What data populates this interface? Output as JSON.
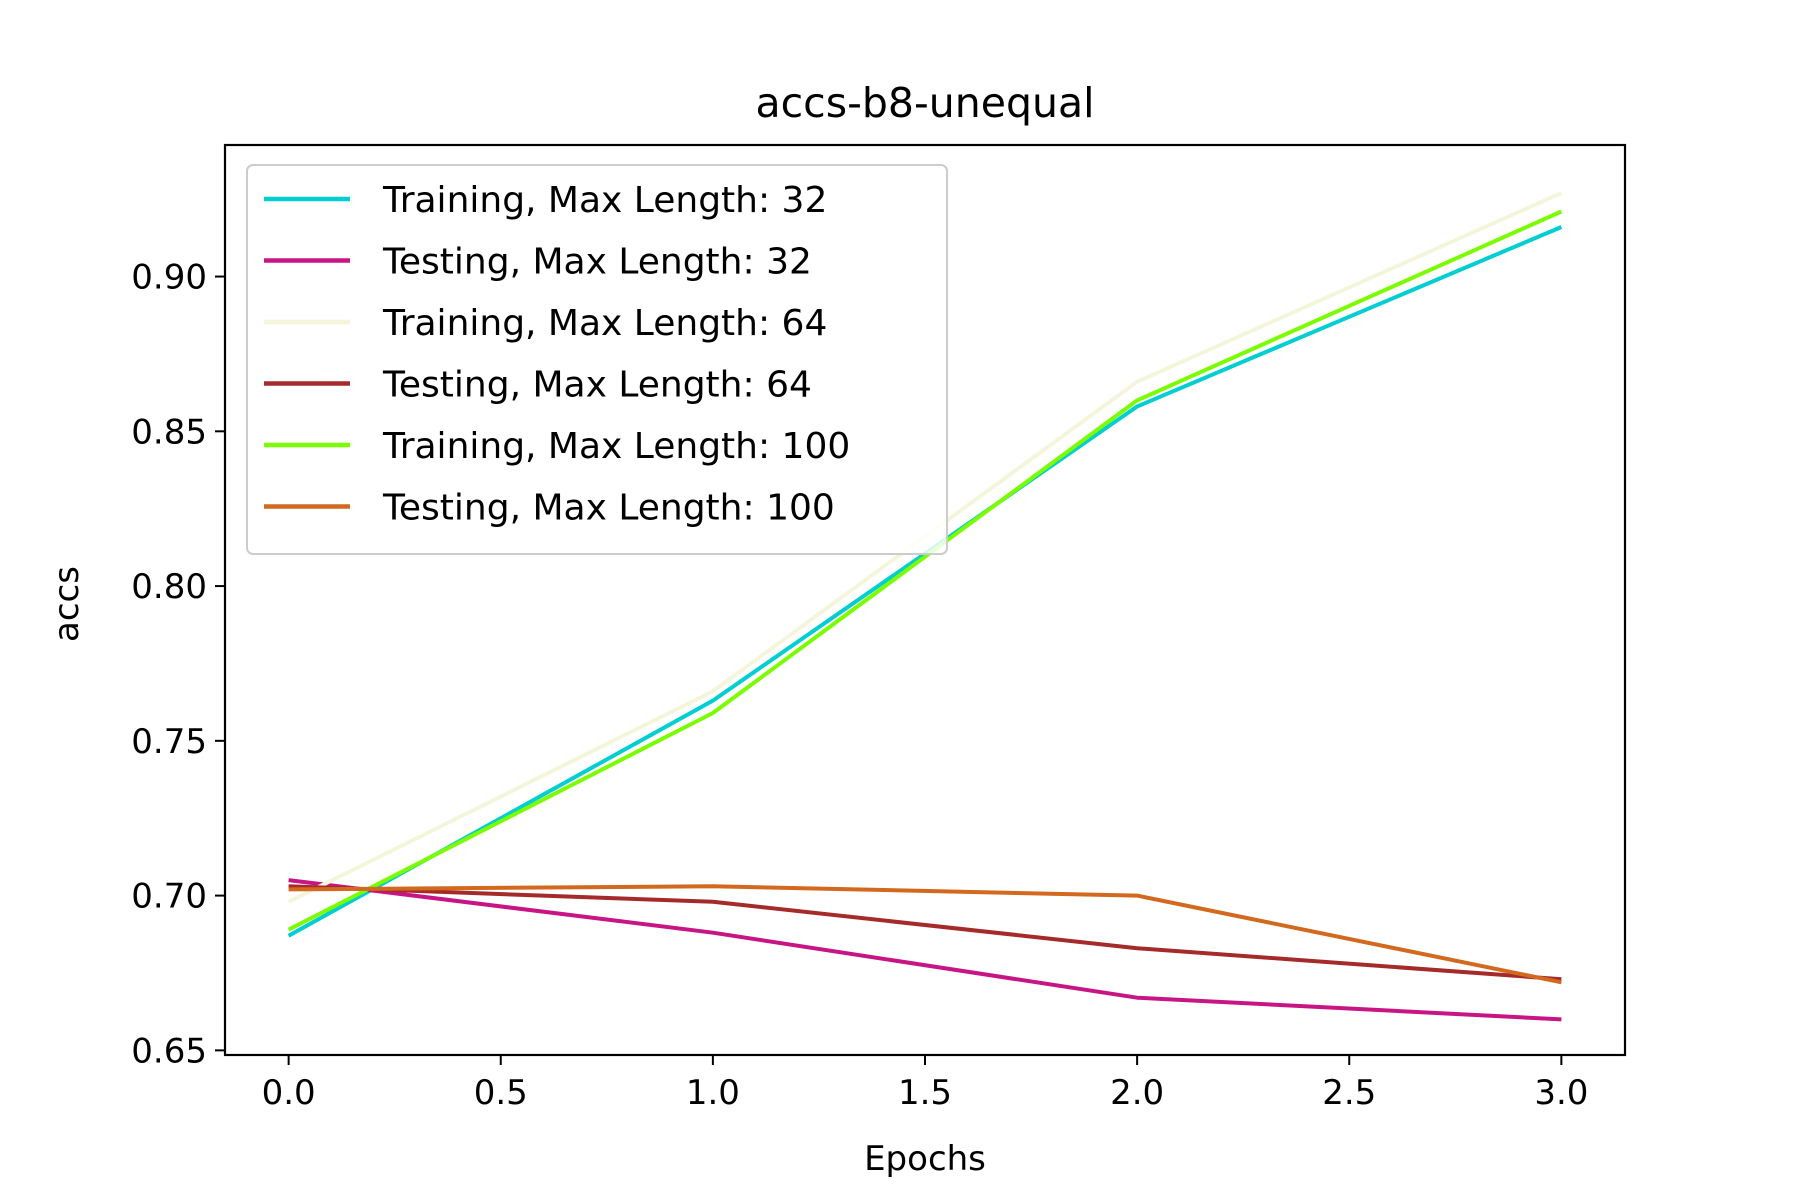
{
  "chart_data": {
    "type": "line",
    "title": "accs-b8-unequal",
    "xlabel": "Epochs",
    "ylabel": "accs",
    "x": [
      0,
      1,
      2,
      3
    ],
    "xlim": [
      -0.15,
      3.15
    ],
    "ylim": [
      0.6485,
      0.9425
    ],
    "xticks": [
      0.0,
      0.5,
      1.0,
      1.5,
      2.0,
      2.5,
      3.0
    ],
    "xtick_labels": [
      "0.0",
      "0.5",
      "1.0",
      "1.5",
      "2.0",
      "2.5",
      "3.0"
    ],
    "yticks": [
      0.65,
      0.7,
      0.75,
      0.8,
      0.85,
      0.9
    ],
    "ytick_labels": [
      "0.65",
      "0.70",
      "0.75",
      "0.80",
      "0.85",
      "0.90"
    ],
    "grid": false,
    "legend_position": "upper-left",
    "series": [
      {
        "name": "Training, Max Length: 32",
        "color": "#00CED1",
        "values": [
          0.687,
          0.763,
          0.858,
          0.916
        ]
      },
      {
        "name": "Testing, Max Length: 32",
        "color": "#C71585",
        "values": [
          0.705,
          0.688,
          0.667,
          0.66
        ]
      },
      {
        "name": "Training, Max Length: 64",
        "color": "#F5F5DC",
        "values": [
          0.698,
          0.766,
          0.866,
          0.927
        ]
      },
      {
        "name": "Testing, Max Length: 64",
        "color": "#A52A2A",
        "values": [
          0.703,
          0.698,
          0.683,
          0.673
        ]
      },
      {
        "name": "Training, Max Length: 100",
        "color": "#7CFC00",
        "values": [
          0.689,
          0.759,
          0.86,
          0.921
        ]
      },
      {
        "name": "Testing, Max Length: 100",
        "color": "#D2691E",
        "values": [
          0.702,
          0.703,
          0.7,
          0.672
        ]
      }
    ]
  }
}
